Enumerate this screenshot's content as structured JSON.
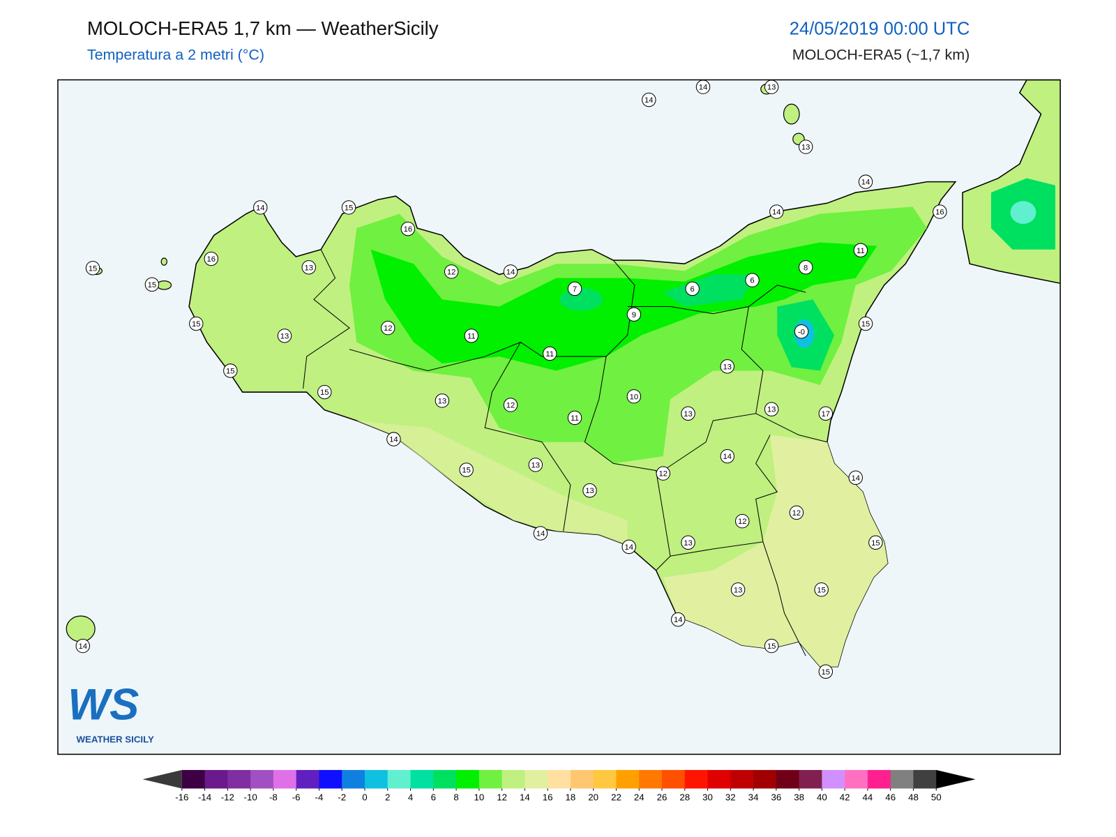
{
  "header": {
    "title": "MOLOCH-ERA5 1,7 km — WeatherSicily",
    "subtitle": "Temperatura a 2 metri (°C)",
    "datetime": "24/05/2019 00:00 UTC",
    "model": "MOLOCH-ERA5 (~1,7 km)"
  },
  "stations": [
    "14",
    "14",
    "13",
    "13",
    "14",
    "14",
    "15",
    "16",
    "14",
    "16",
    "15",
    "16",
    "13",
    "12",
    "14",
    "11",
    "8",
    "15",
    "7",
    "6",
    "6",
    "9",
    "15",
    "13",
    "12",
    "11",
    "-0",
    "15",
    "11",
    "15",
    "13",
    "15",
    "13",
    "10",
    "12",
    "11",
    "13",
    "13",
    "17",
    "14",
    "14",
    "15",
    "13",
    "12",
    "14",
    "13",
    "12",
    "12",
    "15",
    "14",
    "14",
    "13",
    "13",
    "15",
    "14",
    "14",
    "15",
    "15"
  ],
  "logo": {
    "mark": "WS",
    "name": "WEATHER SICILY"
  },
  "colorbar": {
    "ticks": [
      -16,
      -14,
      -12,
      -10,
      -8,
      -6,
      -4,
      -2,
      0,
      2,
      4,
      6,
      8,
      10,
      12,
      14,
      16,
      18,
      20,
      22,
      24,
      26,
      28,
      30,
      32,
      34,
      36,
      38,
      40,
      42,
      44,
      46,
      48,
      50
    ],
    "colors": [
      "#3d0044",
      "#6a1a8a",
      "#7f2fa0",
      "#a050c0",
      "#e070e8",
      "#6020c0",
      "#1010ff",
      "#1080e0",
      "#10c0e0",
      "#60f0d0",
      "#00e0a0",
      "#00e060",
      "#00f000",
      "#70f040",
      "#c0f080",
      "#e0f0a0",
      "#ffe0a0",
      "#ffc870",
      "#ffc840",
      "#ffa000",
      "#ff7800",
      "#ff5000",
      "#ff1400",
      "#e00000",
      "#c00000",
      "#a00000",
      "#700018",
      "#802050",
      "#d090ff",
      "#ff70c0",
      "#ff2090",
      "#808080",
      "#404040"
    ],
    "under": "#3a3a3a",
    "over": "#000000"
  }
}
